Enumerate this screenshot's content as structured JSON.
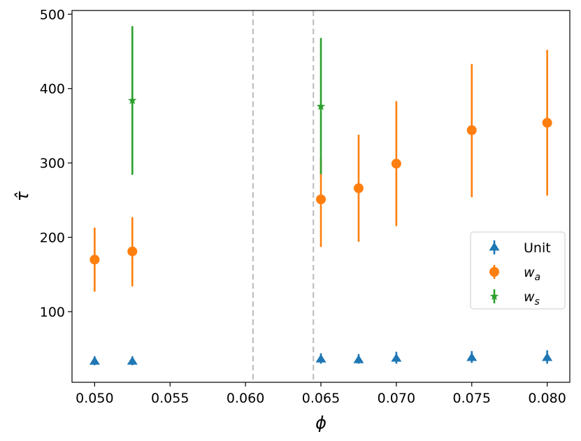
{
  "chart_data": {
    "type": "scatter",
    "title": "",
    "xlabel": "ϕ",
    "ylabel": "τ̂",
    "xlim": [
      0.0485,
      0.0815
    ],
    "ylim": [
      5,
      505
    ],
    "xticks": [
      0.05,
      0.055,
      0.06,
      0.065,
      0.07,
      0.075,
      0.08
    ],
    "xtick_labels": [
      "0.050",
      "0.055",
      "0.060",
      "0.065",
      "0.070",
      "0.075",
      "0.080"
    ],
    "yticks": [
      100,
      200,
      300,
      400,
      500
    ],
    "ytick_labels": [
      "100",
      "200",
      "300",
      "400",
      "500"
    ],
    "vlines": [
      0.0605,
      0.0645
    ],
    "vline_color": "#bfbfbf",
    "grid": false,
    "legend_position": "center-right",
    "series": [
      {
        "name": "Unit",
        "marker": "triangle",
        "color": "#1f77b4",
        "points": [
          {
            "x": 0.05,
            "y": 33,
            "lo": 28,
            "hi": 40
          },
          {
            "x": 0.0525,
            "y": 33,
            "lo": 28,
            "hi": 40
          },
          {
            "x": 0.065,
            "y": 36,
            "lo": 30,
            "hi": 44
          },
          {
            "x": 0.0675,
            "y": 35,
            "lo": 30,
            "hi": 43
          },
          {
            "x": 0.07,
            "y": 37,
            "lo": 30,
            "hi": 46
          },
          {
            "x": 0.075,
            "y": 38,
            "lo": 31,
            "hi": 47
          },
          {
            "x": 0.08,
            "y": 38,
            "lo": 30,
            "hi": 48
          }
        ]
      },
      {
        "name": "w_a",
        "label_main": "w",
        "label_sub": "a",
        "marker": "circle",
        "color": "#ff7f0e",
        "points": [
          {
            "x": 0.05,
            "y": 170,
            "lo": 127,
            "hi": 213
          },
          {
            "x": 0.0525,
            "y": 181,
            "lo": 134,
            "hi": 227
          },
          {
            "x": 0.065,
            "y": 251,
            "lo": 187,
            "hi": 306
          },
          {
            "x": 0.0675,
            "y": 266,
            "lo": 194,
            "hi": 338
          },
          {
            "x": 0.07,
            "y": 299,
            "lo": 215,
            "hi": 383
          },
          {
            "x": 0.075,
            "y": 344,
            "lo": 254,
            "hi": 433
          },
          {
            "x": 0.08,
            "y": 354,
            "lo": 256,
            "hi": 452
          }
        ]
      },
      {
        "name": "w_s",
        "label_main": "w",
        "label_sub": "s",
        "marker": "star",
        "color": "#2ca02c",
        "points": [
          {
            "x": 0.0525,
            "y": 384,
            "lo": 284,
            "hi": 484
          },
          {
            "x": 0.065,
            "y": 376,
            "lo": 285,
            "hi": 468
          }
        ]
      }
    ]
  }
}
